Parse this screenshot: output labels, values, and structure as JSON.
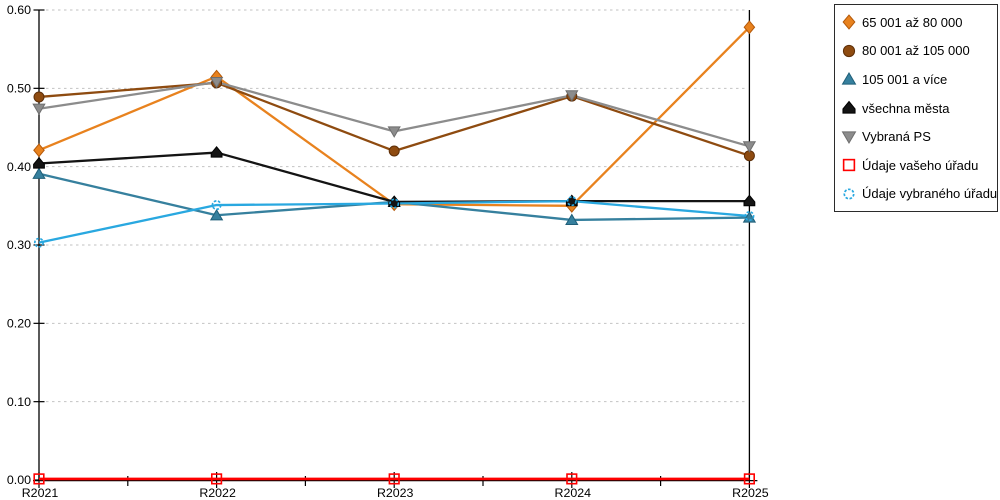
{
  "chart_data": {
    "type": "line",
    "title": "",
    "xlabel": "",
    "ylabel": "",
    "x_categories": [
      "R2021",
      "R2022",
      "R2023",
      "R2024",
      "R2025"
    ],
    "ylim": [
      0.0,
      0.6
    ],
    "ytick_labels": [
      "0.00",
      "0.10",
      "0.20",
      "0.30",
      "0.40",
      "0.50",
      "0.60"
    ],
    "ytick_values": [
      0.0,
      0.1,
      0.2,
      0.3,
      0.4,
      0.5,
      0.6
    ],
    "grid": "horizontal-dashed",
    "grid_color": "#c2c2c2",
    "axis_color": "#000000",
    "legend_position": "outside-top-right",
    "series": [
      {
        "name": "65 001 až 80 000",
        "marker": "diamond",
        "color": "#e8821e",
        "edge": "#b4590a",
        "values": [
          0.421,
          0.515,
          0.352,
          0.35,
          0.578
        ]
      },
      {
        "name": "80 001 až 105 000",
        "marker": "circle",
        "color": "#8e4b10",
        "edge": "#5e2f08",
        "values": [
          0.489,
          0.507,
          0.42,
          0.49,
          0.414
        ]
      },
      {
        "name": "105 001 a více",
        "marker": "triangle-up",
        "color": "#36809e",
        "edge": "#1f5e78",
        "values": [
          0.391,
          0.338,
          0.355,
          0.332,
          0.335
        ]
      },
      {
        "name": "všechna města",
        "marker": "pentagon-up",
        "color": "#141414",
        "edge": "#000000",
        "values": [
          0.404,
          0.418,
          0.355,
          0.356,
          0.356
        ]
      },
      {
        "name": "Vybraná PS",
        "marker": "triangle-down",
        "color": "#8c8c8c",
        "edge": "#6e6e6e",
        "values": [
          0.474,
          0.508,
          0.445,
          0.491,
          0.426
        ]
      },
      {
        "name": "Údaje vašeho úřadu",
        "marker": "square-open",
        "color": "#ff0000",
        "edge": "#ff0000",
        "values": [
          0.0,
          0.0,
          0.0,
          0.0,
          0.0
        ]
      },
      {
        "name": "Údaje vybraného úřadu",
        "marker": "circle-open",
        "color": "#29a8e0",
        "edge": "#29a8e0",
        "values": [
          0.303,
          0.351,
          0.353,
          0.356,
          0.337
        ]
      }
    ]
  }
}
